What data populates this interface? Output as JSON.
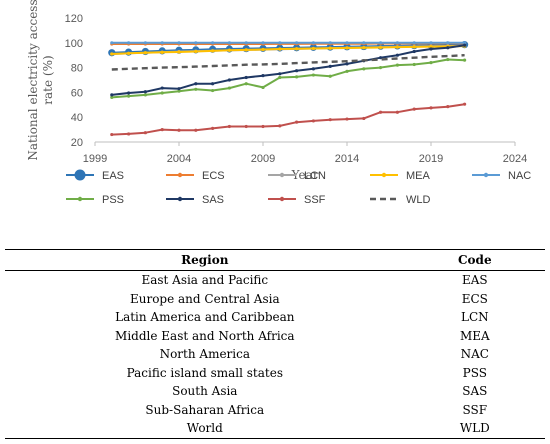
{
  "chart_data": {
    "type": "line",
    "xlabel": "Year",
    "ylabel": "National electricity access rate (%)",
    "xlim": [
      1999,
      2024
    ],
    "ylim": [
      20,
      120
    ],
    "xticks": [
      1999,
      2004,
      2009,
      2014,
      2019,
      2024
    ],
    "yticks": [
      20,
      40,
      60,
      80,
      100,
      120
    ],
    "grid": false,
    "legend_position": "bottom",
    "x": [
      2000,
      2001,
      2002,
      2003,
      2004,
      2005,
      2006,
      2007,
      2008,
      2009,
      2010,
      2011,
      2012,
      2013,
      2014,
      2015,
      2016,
      2017,
      2018,
      2019,
      2020,
      2021
    ],
    "series": [
      {
        "name": "EAS",
        "color": "#2e75b6",
        "marker": "circle",
        "dash": false,
        "values": [
          92,
          92.5,
          93,
          93.5,
          94,
          94.3,
          94.8,
          95,
          95.3,
          95.5,
          95.8,
          96,
          96.3,
          96.5,
          96.8,
          97,
          97.3,
          97.5,
          97.8,
          98,
          98.2,
          98.5
        ]
      },
      {
        "name": "ECS",
        "color": "#ed7d31",
        "marker": "dot",
        "dash": false,
        "values": [
          99,
          99,
          99,
          99,
          99,
          99,
          99,
          99,
          99,
          99,
          99.1,
          99.1,
          99.2,
          99.2,
          99.3,
          99.3,
          99.4,
          99.4,
          99.5,
          99.5,
          99.6,
          99.6
        ]
      },
      {
        "name": "LCN",
        "color": "#a5a5a5",
        "marker": "dot",
        "dash": false,
        "values": [
          91,
          91.5,
          92,
          92.5,
          93,
          93.3,
          93.6,
          93.9,
          94.2,
          94.5,
          94.8,
          95.1,
          95.4,
          95.7,
          96,
          96.2,
          96.5,
          96.8,
          97,
          97.2,
          97.4,
          97.6
        ]
      },
      {
        "name": "MEA",
        "color": "#ffc000",
        "marker": "dot",
        "dash": false,
        "values": [
          91,
          91.5,
          92,
          92.3,
          92.6,
          93,
          93.5,
          94,
          94.3,
          94.6,
          95,
          95.2,
          95.4,
          95.6,
          95.8,
          96,
          96.2,
          96.5,
          96.7,
          96.9,
          97.1,
          97.3
        ]
      },
      {
        "name": "NAC",
        "color": "#5b9bd5",
        "marker": "dot",
        "dash": false,
        "values": [
          100,
          100,
          100,
          100,
          100,
          100,
          100,
          100,
          100,
          100,
          100,
          100,
          100,
          100,
          100,
          100,
          100,
          100,
          100,
          100,
          100,
          100
        ]
      },
      {
        "name": "PSS",
        "color": "#70ad47",
        "marker": "dot",
        "dash": false,
        "values": [
          56,
          57,
          58,
          59.5,
          61,
          62.5,
          61.5,
          63.5,
          67,
          64,
          72,
          72.5,
          74,
          73,
          77,
          79,
          80,
          82,
          82.5,
          84,
          86.5,
          86
        ]
      },
      {
        "name": "SAS",
        "color": "#1f3864",
        "marker": "dot",
        "dash": false,
        "values": [
          58,
          59.5,
          60.5,
          63.5,
          63,
          67,
          67,
          70,
          72,
          73.5,
          75,
          77.5,
          79,
          81,
          83,
          85.5,
          88,
          90,
          93,
          95,
          96,
          98
        ]
      },
      {
        "name": "SSF",
        "color": "#c0504d",
        "marker": "dot",
        "dash": false,
        "values": [
          26,
          26.5,
          27.5,
          30,
          29.5,
          29.5,
          31,
          32.5,
          32.5,
          32.5,
          33,
          36,
          37,
          38,
          38.5,
          39,
          44,
          44,
          46.5,
          47.5,
          48.5,
          50.5
        ]
      },
      {
        "name": "WLD",
        "color": "#595959",
        "marker": "none",
        "dash": true,
        "values": [
          78.5,
          79,
          79.5,
          80,
          80.3,
          80.8,
          81.3,
          81.8,
          82.3,
          82.6,
          83,
          83.6,
          84.2,
          84.7,
          85.2,
          85.8,
          86.5,
          87.3,
          88,
          88.7,
          89.3,
          90
        ]
      }
    ]
  },
  "table": {
    "headers": [
      "Region",
      "Code"
    ],
    "rows": [
      [
        "East Asia and Pacific",
        "EAS"
      ],
      [
        "Europe and Central Asia",
        "ECS"
      ],
      [
        "Latin America and Caribbean",
        "LCN"
      ],
      [
        "Middle East and North Africa",
        "MEA"
      ],
      [
        "North America",
        "NAC"
      ],
      [
        "Pacific island small states",
        "PSS"
      ],
      [
        "South Asia",
        "SAS"
      ],
      [
        "Sub-Saharan Africa",
        "SSF"
      ],
      [
        "World",
        "WLD"
      ]
    ]
  }
}
